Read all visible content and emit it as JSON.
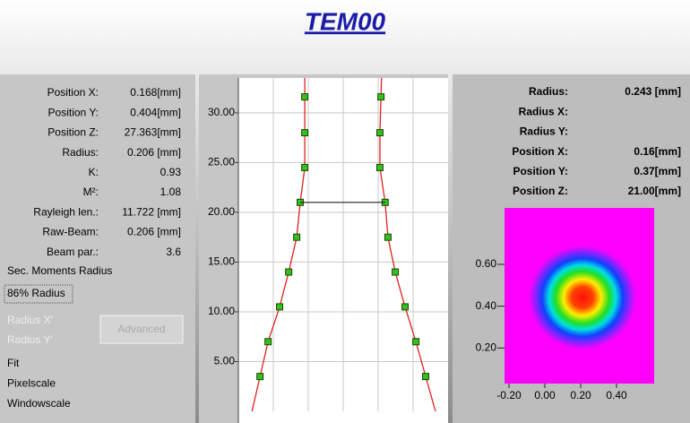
{
  "title": "TEM00",
  "left_panel": {
    "fields": [
      {
        "label": "Position X:",
        "value": "0.168[mm]"
      },
      {
        "label": "Position Y:",
        "value": "0.404[mm]"
      },
      {
        "label": "Position Z:",
        "value": "27.363[mm]"
      },
      {
        "label": "Radius:",
        "value": "0.206 [mm]"
      },
      {
        "label": "K:",
        "value": "0.93"
      },
      {
        "label": "M²:",
        "value": "1.08"
      },
      {
        "label": "Rayleigh len.:",
        "value": "11.722 [mm]"
      },
      {
        "label": "Raw-Beam:",
        "value": "0.206 [mm]"
      },
      {
        "label": "Beam par.:",
        "value": "3.6"
      }
    ],
    "options": [
      "Sec. Moments Radius",
      "86% Radius"
    ],
    "disabled": [
      "Radius X'",
      "Radius Y'"
    ],
    "button": "Advanced",
    "menu": [
      "Fit",
      "Pixelscale",
      "Windowscale"
    ]
  },
  "right_panel": {
    "fields": [
      {
        "label": "Radius:",
        "value": "0.243 [mm]"
      },
      {
        "label": "Radius X:"
      },
      {
        "label": "Radius Y:"
      },
      {
        "label": "Position X:",
        "value": "0.16[mm]"
      },
      {
        "label": "Position Y:",
        "value": "0.37[mm]"
      },
      {
        "label": "Position Z:",
        "value": "21.00[mm]"
      }
    ]
  },
  "chart_data": [
    {
      "type": "scatter",
      "xlim": [
        -3,
        3
      ],
      "ylim": [
        0,
        33.5
      ],
      "xticks": [
        -2,
        -1,
        0,
        1,
        2
      ],
      "yticks": [
        {
          "value": 5,
          "label": "5.00"
        },
        {
          "value": 10,
          "label": "10.00"
        },
        {
          "value": 15,
          "label": "15.00"
        },
        {
          "value": 20,
          "label": "20.00"
        },
        {
          "value": 25,
          "label": "25.00"
        },
        {
          "value": 30,
          "label": "30.00"
        }
      ],
      "grid": true,
      "series": [
        {
          "color": "#e02020",
          "x": [
            -1.1,
            -1.1,
            -1.1,
            -1.23,
            -1.33,
            -1.56,
            -1.82,
            -2.15,
            -2.38
          ],
          "values": [
            31.6,
            28.0,
            24.5,
            21.0,
            17.5,
            14.0,
            10.5,
            7.0,
            3.5
          ]
        },
        {
          "color": "#e02020",
          "x": [
            1.08,
            1.05,
            1.05,
            1.2,
            1.28,
            1.49,
            1.77,
            2.08,
            2.36
          ],
          "values": [
            31.6,
            28.0,
            24.5,
            21.0,
            17.5,
            14.0,
            10.5,
            7.0,
            3.5
          ]
        }
      ],
      "marker_color": "#30c020"
    },
    {
      "type": "image",
      "xlim": [
        -0.225,
        0.61
      ],
      "ylim": [
        0.03,
        0.87
      ],
      "xticks": [
        {
          "value": -0.2,
          "label": "-0.20"
        },
        {
          "value": 0,
          "label": "0.00"
        },
        {
          "value": 0.2,
          "label": "0.20"
        },
        {
          "value": 0.4,
          "label": "0.40"
        }
      ],
      "yticks": [
        {
          "value": 0.2,
          "label": "0.20"
        },
        {
          "value": 0.4,
          "label": "0.40"
        },
        {
          "value": 0.6,
          "label": "0.60"
        }
      ]
    }
  ]
}
